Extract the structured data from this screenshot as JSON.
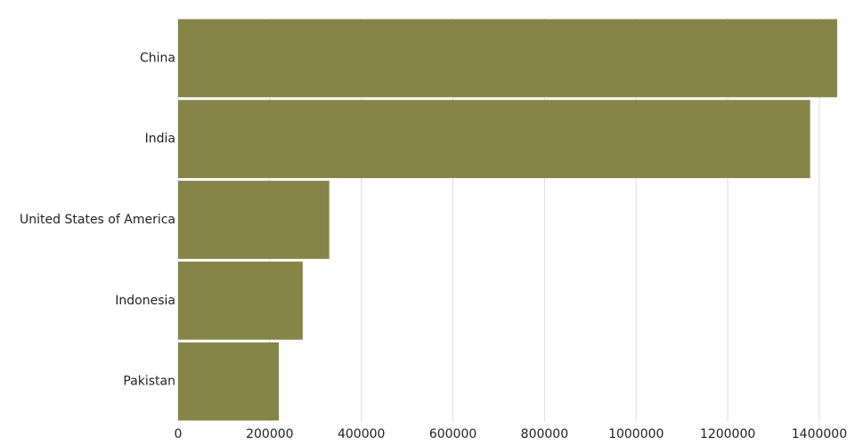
{
  "chart_data": {
    "type": "bar",
    "orientation": "horizontal",
    "categories": [
      "China",
      "India",
      "United States of America",
      "Indonesia",
      "Pakistan"
    ],
    "values": [
      1439000,
      1380000,
      330000,
      272000,
      220000
    ],
    "color": "#858548",
    "xlim": [
      0,
      1439000
    ],
    "xticks": [
      0,
      200000,
      400000,
      600000,
      800000,
      1000000,
      1200000,
      1400000
    ],
    "grid": true
  }
}
